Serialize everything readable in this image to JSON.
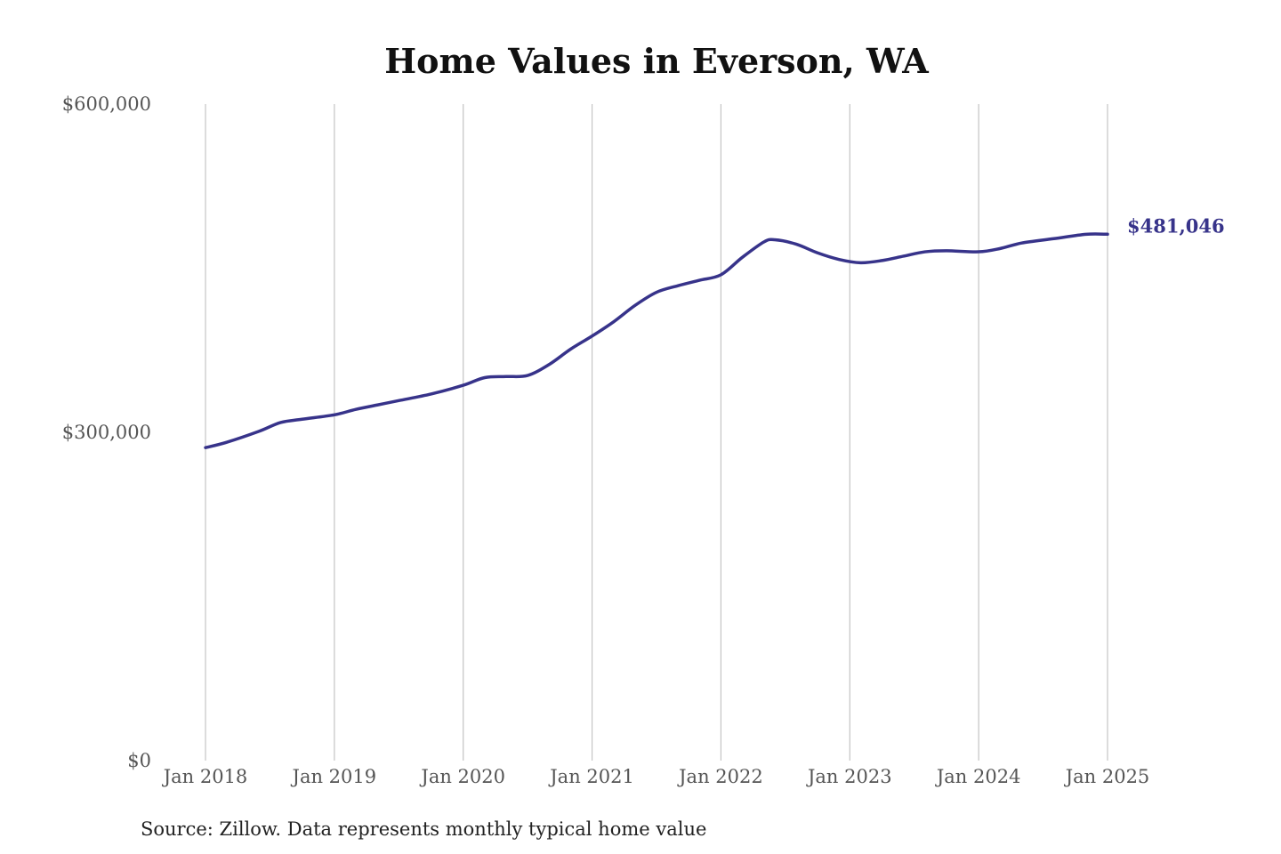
{
  "chart_data": {
    "type": "line",
    "title": "Home Values in Everson, WA",
    "source": "Source: Zillow. Data represents monthly typical home value",
    "ylim": [
      0,
      600000
    ],
    "y_ticks": [
      {
        "value": 0,
        "label": "$0"
      },
      {
        "value": 300000,
        "label": "$300,000"
      },
      {
        "value": 600000,
        "label": "$600,000"
      }
    ],
    "x_range": [
      "2018-01",
      "2025-01"
    ],
    "x_ticks": [
      {
        "date": "2018-01",
        "label": "Jan 2018"
      },
      {
        "date": "2019-01",
        "label": "Jan 2019"
      },
      {
        "date": "2020-01",
        "label": "Jan 2020"
      },
      {
        "date": "2021-01",
        "label": "Jan 2021"
      },
      {
        "date": "2022-01",
        "label": "Jan 2022"
      },
      {
        "date": "2023-01",
        "label": "Jan 2023"
      },
      {
        "date": "2024-01",
        "label": "Jan 2024"
      },
      {
        "date": "2025-01",
        "label": "Jan 2025"
      }
    ],
    "vertical_gridlines": true,
    "line_color": "#37338a",
    "end_label": "$481,046",
    "series": [
      {
        "x": [
          "2018-01",
          "2018-03",
          "2018-06",
          "2018-08",
          "2018-10",
          "2019-01",
          "2019-03",
          "2019-05",
          "2019-07",
          "2019-10",
          "2020-01",
          "2020-03",
          "2020-05",
          "2020-07",
          "2020-09",
          "2020-11",
          "2021-01",
          "2021-03",
          "2021-05",
          "2021-07",
          "2021-09",
          "2021-11",
          "2022-01",
          "2022-03",
          "2022-05",
          "2022-06",
          "2022-08",
          "2022-10",
          "2022-12",
          "2023-02",
          "2023-04",
          "2023-06",
          "2023-08",
          "2023-10",
          "2024-01",
          "2024-03",
          "2024-05",
          "2024-08",
          "2024-11",
          "2025-01"
        ],
        "values": [
          286000,
          291000,
          301000,
          309000,
          312000,
          316000,
          321000,
          325000,
          329000,
          335000,
          343000,
          350000,
          351000,
          352000,
          362000,
          376000,
          388000,
          401000,
          416000,
          428000,
          434000,
          439000,
          444000,
          460000,
          474000,
          476000,
          472000,
          464000,
          458000,
          455000,
          457000,
          461000,
          465000,
          466000,
          465000,
          468000,
          473000,
          477000,
          481000,
          481046
        ]
      }
    ]
  }
}
